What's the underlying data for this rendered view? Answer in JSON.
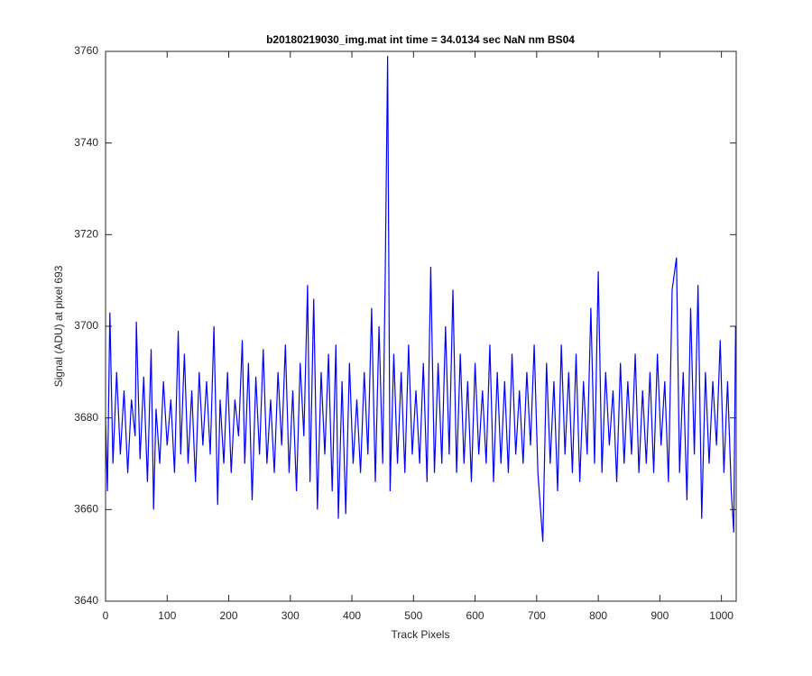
{
  "chart_data": {
    "type": "line",
    "title": "b20180219030_img.mat int time = 34.0134 sec  NaN nm BS04",
    "x_label": "Track Pixels",
    "y_label": "Signal (ADU) at pixel 693",
    "xlim": [
      0,
      1024
    ],
    "ylim": [
      3640,
      3760
    ],
    "xticks": [
      0,
      100,
      200,
      300,
      400,
      500,
      600,
      700,
      800,
      900,
      1000
    ],
    "yticks": [
      3640,
      3660,
      3680,
      3700,
      3720,
      3740,
      3760
    ],
    "grid": false,
    "x": [
      0,
      3,
      7,
      12,
      18,
      24,
      30,
      36,
      42,
      48,
      50,
      56,
      62,
      68,
      74,
      78,
      82,
      88,
      94,
      100,
      106,
      112,
      118,
      122,
      128,
      134,
      140,
      146,
      152,
      158,
      164,
      170,
      176,
      182,
      186,
      192,
      198,
      204,
      210,
      216,
      222,
      226,
      232,
      238,
      244,
      250,
      256,
      262,
      268,
      274,
      280,
      286,
      292,
      298,
      304,
      310,
      316,
      322,
      328,
      332,
      338,
      344,
      350,
      356,
      362,
      368,
      374,
      378,
      384,
      390,
      396,
      402,
      408,
      414,
      420,
      426,
      432,
      438,
      444,
      450,
      454,
      458,
      462,
      468,
      474,
      480,
      486,
      492,
      498,
      504,
      510,
      516,
      522,
      528,
      534,
      540,
      546,
      552,
      558,
      564,
      570,
      576,
      582,
      588,
      594,
      600,
      606,
      612,
      618,
      624,
      630,
      636,
      642,
      648,
      654,
      660,
      666,
      672,
      678,
      684,
      690,
      696,
      702,
      710,
      716,
      722,
      728,
      734,
      740,
      746,
      752,
      758,
      764,
      770,
      776,
      782,
      788,
      794,
      800,
      806,
      812,
      818,
      824,
      830,
      836,
      842,
      848,
      854,
      860,
      866,
      872,
      878,
      884,
      890,
      896,
      902,
      908,
      914,
      920,
      927,
      932,
      938,
      944,
      950,
      956,
      962,
      968,
      974,
      980,
      986,
      992,
      998,
      1004,
      1010,
      1016,
      1020,
      1023
    ],
    "series": [
      {
        "color": "#0000ff",
        "values": [
          3680,
          3664,
          3703,
          3670,
          3690,
          3672,
          3686,
          3668,
          3684,
          3676,
          3701,
          3671,
          3689,
          3666,
          3695,
          3660,
          3682,
          3670,
          3688,
          3674,
          3684,
          3668,
          3699,
          3672,
          3694,
          3670,
          3686,
          3666,
          3690,
          3674,
          3688,
          3672,
          3700,
          3661,
          3684,
          3670,
          3690,
          3668,
          3684,
          3676,
          3697,
          3670,
          3692,
          3662,
          3689,
          3672,
          3695,
          3670,
          3684,
          3668,
          3690,
          3674,
          3696,
          3668,
          3686,
          3664,
          3692,
          3676,
          3709,
          3666,
          3706,
          3660,
          3690,
          3672,
          3694,
          3664,
          3696,
          3658,
          3688,
          3659,
          3692,
          3670,
          3684,
          3668,
          3690,
          3672,
          3704,
          3666,
          3700,
          3670,
          3710,
          3759,
          3664,
          3694,
          3670,
          3690,
          3668,
          3696,
          3672,
          3686,
          3670,
          3692,
          3666,
          3713,
          3668,
          3692,
          3670,
          3700,
          3672,
          3708,
          3668,
          3694,
          3670,
          3688,
          3666,
          3692,
          3672,
          3686,
          3670,
          3696,
          3666,
          3690,
          3670,
          3688,
          3668,
          3694,
          3672,
          3686,
          3670,
          3690,
          3674,
          3696,
          3668,
          3653,
          3692,
          3670,
          3688,
          3664,
          3696,
          3672,
          3690,
          3668,
          3694,
          3666,
          3688,
          3672,
          3704,
          3670,
          3712,
          3668,
          3690,
          3674,
          3686,
          3666,
          3692,
          3670,
          3688,
          3672,
          3694,
          3668,
          3686,
          3670,
          3690,
          3668,
          3694,
          3674,
          3688,
          3666,
          3708,
          3715,
          3668,
          3690,
          3662,
          3704,
          3672,
          3709,
          3658,
          3690,
          3670,
          3688,
          3674,
          3697,
          3668,
          3688,
          3664,
          3655,
          3700
        ]
      }
    ]
  }
}
